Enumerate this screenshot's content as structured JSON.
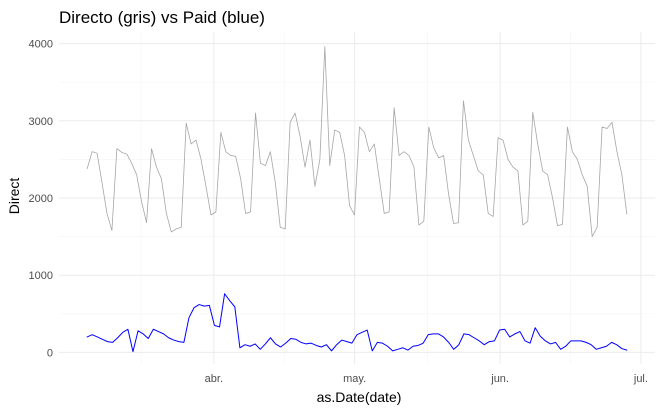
{
  "chart_data": {
    "type": "line",
    "title": "Directo (gris) vs Paid (blue)",
    "xlabel": "as.Date(date)",
    "ylabel": "Direct",
    "x_start": "2020-03-05",
    "x_end": "2020-06-28",
    "x_ticks": [
      {
        "date": "2020-04-01",
        "label": "abr."
      },
      {
        "date": "2020-05-01",
        "label": "may."
      },
      {
        "date": "2020-06-01",
        "label": "jun."
      },
      {
        "date": "2020-07-01",
        "label": "jul."
      }
    ],
    "y_ticks": [
      0,
      1000,
      2000,
      3000,
      4000
    ],
    "xlim": [
      "2020-02-28",
      "2020-07-04"
    ],
    "ylim": [
      -150,
      4150
    ],
    "grid": true,
    "legend": "none",
    "series": [
      {
        "color": "#a6a6a6",
        "values": [
          2380,
          2600,
          2580,
          2200,
          1800,
          1580,
          2640,
          2590,
          2570,
          2450,
          2300,
          1950,
          1680,
          2640,
          2400,
          2250,
          1800,
          1560,
          1600,
          1620,
          2970,
          2700,
          2750,
          2500,
          2150,
          1780,
          1820,
          2850,
          2600,
          2550,
          2540,
          2250,
          1800,
          1820,
          3100,
          2450,
          2420,
          2600,
          2200,
          1620,
          1600,
          2980,
          3100,
          2800,
          2400,
          2750,
          2150,
          2500,
          3960,
          2420,
          2880,
          2850,
          2550,
          1900,
          1780,
          2920,
          2850,
          2600,
          2700,
          2250,
          1800,
          1820,
          3170,
          2550,
          2600,
          2550,
          2400,
          1650,
          1700,
          2920,
          2650,
          2520,
          2550,
          2050,
          1670,
          1680,
          3260,
          2750,
          2550,
          2350,
          2300,
          1800,
          1760,
          2780,
          2750,
          2500,
          2400,
          2350,
          1650,
          1700,
          3110,
          2700,
          2350,
          2300,
          2000,
          1640,
          1660,
          2920,
          2600,
          2500,
          2300,
          2150,
          1500,
          1620,
          2920,
          2900,
          2980,
          2600,
          2300,
          1790
        ]
      },
      {
        "color": "#0000ff",
        "values": [
          200,
          230,
          200,
          170,
          140,
          130,
          190,
          260,
          300,
          10,
          280,
          240,
          180,
          300,
          270,
          240,
          190,
          160,
          140,
          130,
          450,
          580,
          620,
          600,
          610,
          350,
          330,
          760,
          670,
          590,
          60,
          100,
          80,
          110,
          40,
          110,
          190,
          110,
          70,
          120,
          180,
          170,
          130,
          110,
          120,
          90,
          70,
          100,
          20,
          100,
          160,
          140,
          120,
          230,
          260,
          290,
          20,
          130,
          120,
          80,
          20,
          40,
          60,
          30,
          80,
          90,
          120,
          230,
          240,
          240,
          200,
          130,
          40,
          100,
          240,
          230,
          190,
          150,
          100,
          140,
          150,
          290,
          300,
          200,
          240,
          270,
          150,
          120,
          320,
          210,
          150,
          110,
          130,
          40,
          80,
          150,
          150,
          150,
          130,
          100,
          40,
          60,
          80,
          130,
          100,
          50,
          30
        ]
      }
    ]
  }
}
